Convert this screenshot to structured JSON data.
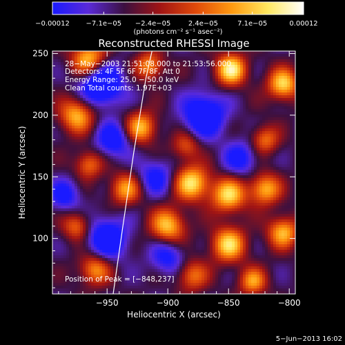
{
  "chart_data": {
    "type": "heatmap",
    "title": "Reconstructed RHESSI Image",
    "xlabel": "Heliocentric X (arcsec)",
    "ylabel": "Heliocentric Y (arcsec)",
    "xlim": [
      -995,
      -795
    ],
    "ylim": [
      55,
      252
    ],
    "x_ticks": [
      -950,
      -900,
      -850,
      -800
    ],
    "x_tick_labels": [
      "−950",
      "−900",
      "−850",
      "−800"
    ],
    "y_ticks": [
      100,
      150,
      200,
      250
    ],
    "y_tick_labels": [
      "100",
      "150",
      "200",
      "250"
    ],
    "colorbar": {
      "min": -0.00012,
      "max": 0.00012,
      "ticks": [
        -0.00012,
        -7.1e-05,
        -2.4e-05,
        2.4e-05,
        7.1e-05,
        0.00012
      ],
      "tick_labels": [
        "−0.00012",
        "−7.1e−05",
        "−2.4e−05",
        "2.4e−05",
        "7.1e−05",
        "0.00012"
      ],
      "unit_label": "(photons cm⁻² s⁻¹ asec⁻²)",
      "colors": [
        "#1a1aff",
        "#5a2ad8",
        "#3c1040",
        "#a01414",
        "#e14a0a",
        "#ff9a10",
        "#ffe860",
        "#ffffff"
      ]
    },
    "annotations": [
      "28−May−2003 21:51:08.000 to 21:53:56.000",
      "Detectors: 4F 5F 6F 7F 8F, Att 0",
      "Energy Range: 25.0 − 50.0 keV",
      "Clean    Total counts: 1.97E+03"
    ],
    "peak_label": "Position of Peak = [−848,237]",
    "peak": {
      "x": -848,
      "y": 237
    },
    "limb_curve": [
      [
        -945,
        55
      ],
      [
        -937,
        110
      ],
      [
        -928,
        170
      ],
      [
        -918,
        230
      ],
      [
        -913,
        252
      ]
    ],
    "sources": [
      {
        "x": -965,
        "y": 245,
        "amp": 0.9,
        "r": 10
      },
      {
        "x": -915,
        "y": 240,
        "amp": 0.7,
        "r": 8
      },
      {
        "x": -848,
        "y": 237,
        "amp": 1.0,
        "r": 9
      },
      {
        "x": -805,
        "y": 225,
        "amp": 0.9,
        "r": 9
      },
      {
        "x": -975,
        "y": 200,
        "amp": 0.8,
        "r": 10
      },
      {
        "x": -922,
        "y": 190,
        "amp": 0.8,
        "r": 9
      },
      {
        "x": -885,
        "y": 175,
        "amp": 0.5,
        "r": 8
      },
      {
        "x": -820,
        "y": 180,
        "amp": 0.6,
        "r": 8
      },
      {
        "x": -965,
        "y": 160,
        "amp": 0.6,
        "r": 8
      },
      {
        "x": -935,
        "y": 140,
        "amp": 0.7,
        "r": 9
      },
      {
        "x": -880,
        "y": 145,
        "amp": 0.95,
        "r": 10
      },
      {
        "x": -850,
        "y": 135,
        "amp": 0.9,
        "r": 10
      },
      {
        "x": -820,
        "y": 140,
        "amp": 0.8,
        "r": 9
      },
      {
        "x": -975,
        "y": 110,
        "amp": 0.6,
        "r": 8
      },
      {
        "x": -900,
        "y": 110,
        "amp": 0.85,
        "r": 10
      },
      {
        "x": -850,
        "y": 95,
        "amp": 0.9,
        "r": 10
      },
      {
        "x": -805,
        "y": 105,
        "amp": 0.8,
        "r": 9
      },
      {
        "x": -960,
        "y": 75,
        "amp": 0.7,
        "r": 9
      },
      {
        "x": -880,
        "y": 70,
        "amp": 0.6,
        "r": 9
      },
      {
        "x": -830,
        "y": 65,
        "amp": 0.7,
        "r": 8
      },
      {
        "x": -955,
        "y": 225,
        "amp": -0.9,
        "r": 12
      },
      {
        "x": -870,
        "y": 200,
        "amp": -0.8,
        "r": 12
      },
      {
        "x": -945,
        "y": 180,
        "amp": -0.6,
        "r": 10
      },
      {
        "x": -950,
        "y": 100,
        "amp": -0.7,
        "r": 12
      },
      {
        "x": -910,
        "y": 150,
        "amp": -0.5,
        "r": 10
      },
      {
        "x": -840,
        "y": 165,
        "amp": -0.5,
        "r": 10
      },
      {
        "x": -985,
        "y": 135,
        "amp": -0.5,
        "r": 9
      },
      {
        "x": -900,
        "y": 85,
        "amp": -0.5,
        "r": 10
      }
    ]
  },
  "footer": {
    "timestamp": "5−Jun−2013 16:02"
  }
}
